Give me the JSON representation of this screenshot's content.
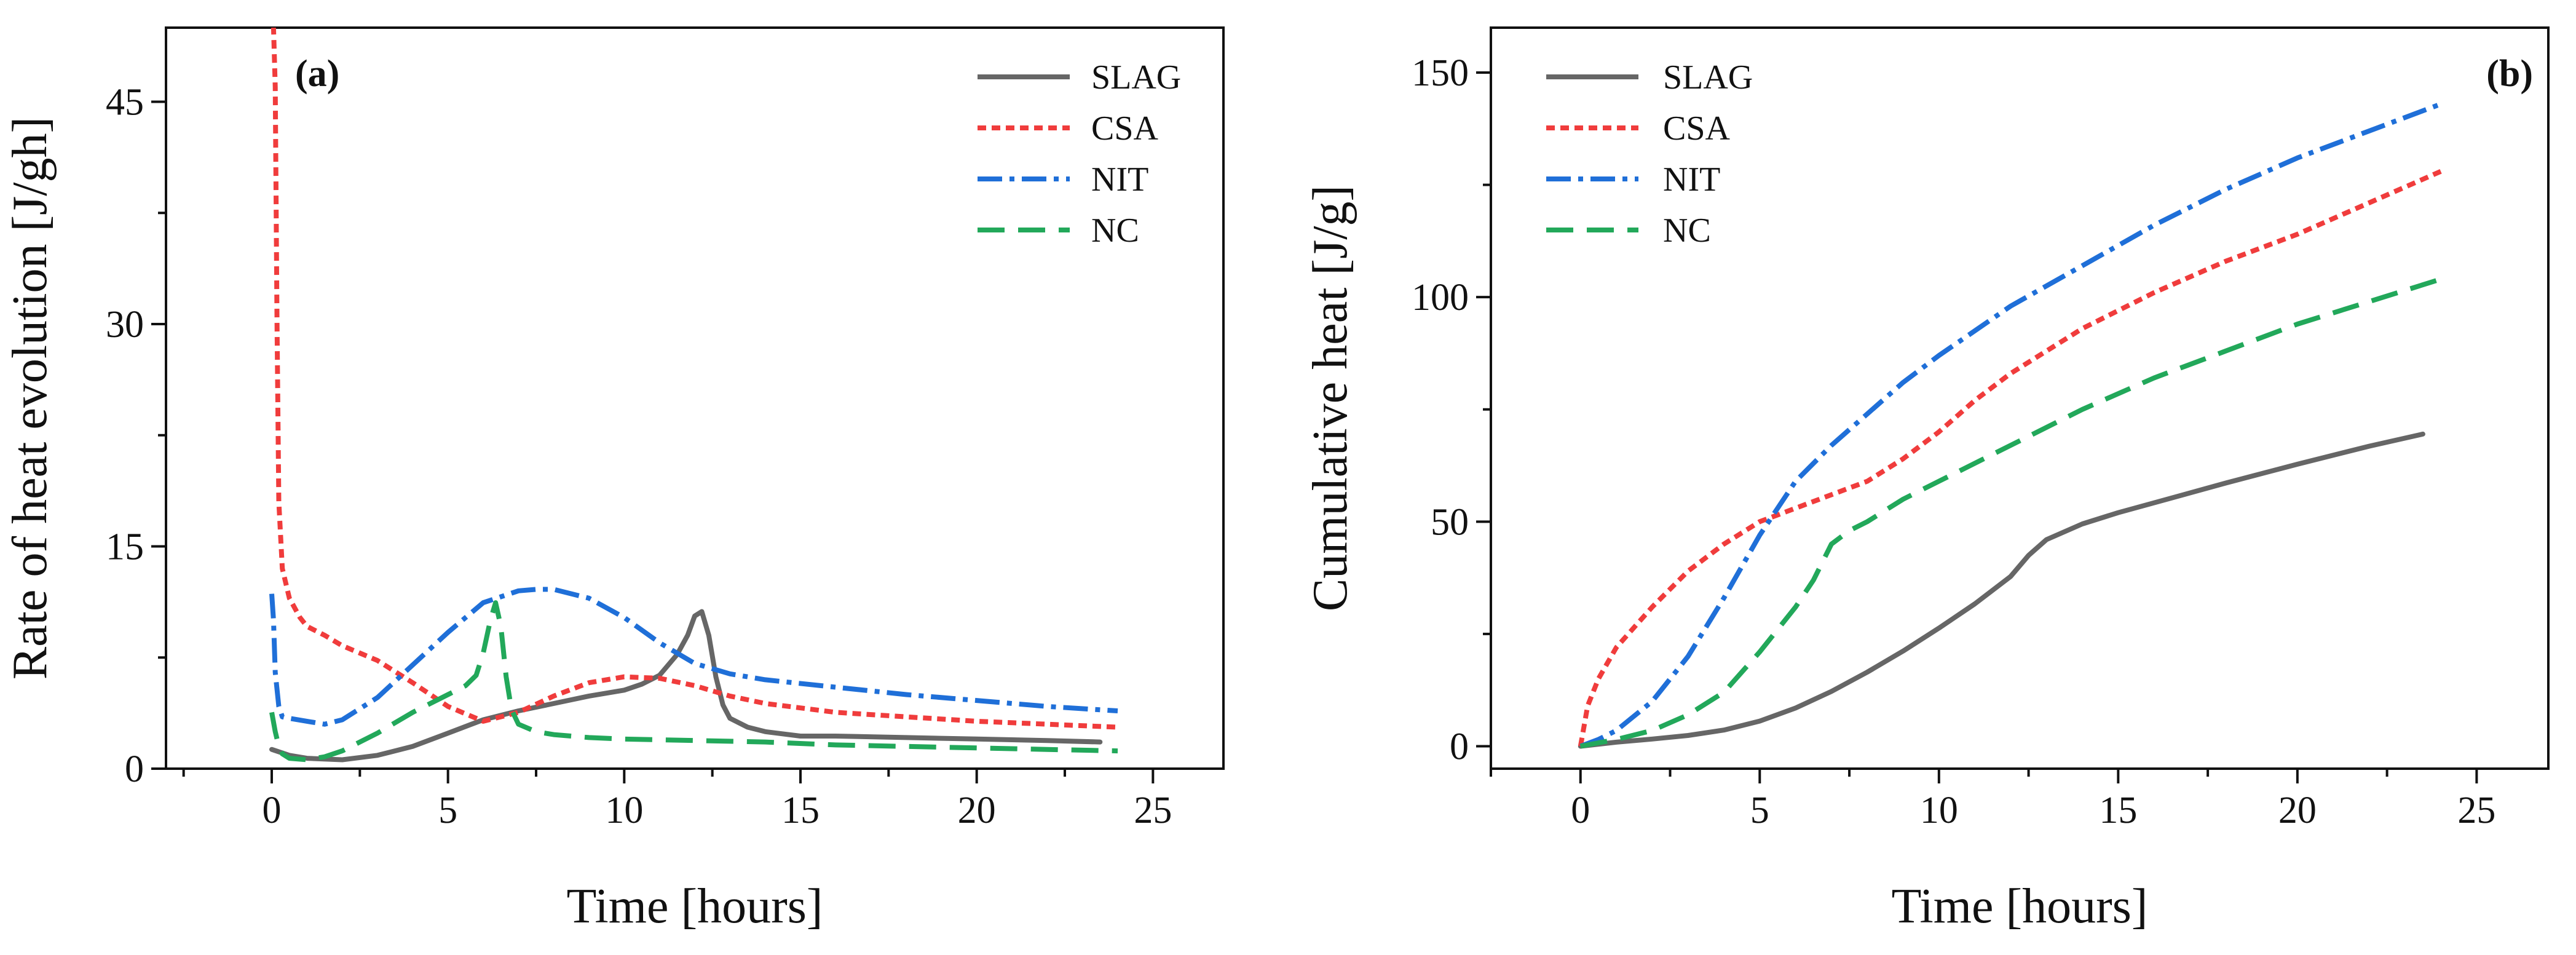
{
  "figure": {
    "description_free": true
  },
  "chart_data": [
    {
      "type": "line",
      "panel_label": "(a)",
      "xlabel": "Time [hours]",
      "ylabel": "Rate of heat evolution [J/gh]",
      "xlim": [
        -3,
        27
      ],
      "ylim": [
        0,
        50
      ],
      "xticks": [
        0,
        5,
        10,
        15,
        20,
        25
      ],
      "yticks": [
        0,
        15,
        30,
        45
      ],
      "grid": false,
      "legend_position": "top-right",
      "series": [
        {
          "name": "SLAG",
          "color": "#666666",
          "dash": "solid",
          "x": [
            0,
            0.5,
            1,
            2,
            3,
            4,
            5,
            6,
            7,
            8,
            9,
            10,
            10.5,
            11,
            11.5,
            11.8,
            12,
            12.2,
            12.4,
            12.6,
            12.8,
            13,
            13.5,
            14,
            15,
            16,
            18,
            20,
            22,
            23.5
          ],
          "y": [
            1.3,
            0.9,
            0.7,
            0.6,
            0.9,
            1.5,
            2.4,
            3.3,
            3.9,
            4.4,
            4.9,
            5.3,
            5.7,
            6.3,
            7.7,
            9.0,
            10.3,
            10.6,
            9.0,
            6.2,
            4.3,
            3.4,
            2.8,
            2.5,
            2.2,
            2.2,
            2.1,
            2.0,
            1.9,
            1.8
          ]
        },
        {
          "name": "CSA",
          "color": "#F03C3C",
          "dash": "dot",
          "x": [
            0,
            0.05,
            0.1,
            0.15,
            0.2,
            0.3,
            0.5,
            0.8,
            1,
            1.5,
            2,
            2.5,
            3,
            4,
            5,
            6,
            7,
            8,
            9,
            10,
            11,
            12,
            13,
            14,
            16,
            18,
            20,
            22,
            24
          ],
          "y": [
            50,
            50,
            46,
            30,
            18,
            13.5,
            11.5,
            10.2,
            9.6,
            9.0,
            8.3,
            7.8,
            7.3,
            5.8,
            4.2,
            3.2,
            3.8,
            4.9,
            5.8,
            6.2,
            6.1,
            5.6,
            4.9,
            4.4,
            3.8,
            3.5,
            3.2,
            3.0,
            2.8
          ]
        },
        {
          "name": "NIT",
          "color": "#1F6FD8",
          "dash": "dashdot",
          "x": [
            0,
            0.05,
            0.1,
            0.2,
            0.3,
            0.5,
            1,
            1.5,
            2,
            3,
            4,
            5,
            6,
            7,
            7.5,
            8,
            9,
            10,
            11,
            12,
            13,
            14,
            16,
            18,
            20,
            22,
            24
          ],
          "y": [
            11.8,
            10.0,
            6.5,
            4.2,
            3.5,
            3.4,
            3.2,
            3.0,
            3.3,
            4.8,
            7.0,
            9.2,
            11.2,
            12.0,
            12.1,
            12.1,
            11.5,
            10.2,
            8.5,
            7.1,
            6.4,
            6.0,
            5.5,
            5.0,
            4.6,
            4.2,
            3.9
          ]
        },
        {
          "name": "NC",
          "color": "#22A85A",
          "dash": "dash",
          "x": [
            0,
            0.1,
            0.2,
            0.3,
            0.5,
            1,
            1.5,
            2,
            3,
            4,
            5,
            5.5,
            5.8,
            6,
            6.2,
            6.35,
            6.5,
            6.65,
            6.8,
            7,
            7.5,
            8,
            9,
            10,
            12,
            14,
            16,
            18,
            20,
            22,
            24
          ],
          "y": [
            3.8,
            2.5,
            1.5,
            1.0,
            0.7,
            0.6,
            0.8,
            1.2,
            2.4,
            3.8,
            5.0,
            5.6,
            6.3,
            7.8,
            10.0,
            11.2,
            9.6,
            6.2,
            4.0,
            3.0,
            2.5,
            2.3,
            2.1,
            2.0,
            1.9,
            1.8,
            1.6,
            1.5,
            1.4,
            1.3,
            1.2
          ]
        }
      ]
    },
    {
      "type": "line",
      "panel_label": "(b)",
      "xlabel": "Time [hours]",
      "ylabel": "Cumulative heat [J/g]",
      "xlim": [
        -2.5,
        27
      ],
      "ylim": [
        -5,
        160
      ],
      "xticks": [
        0,
        5,
        10,
        15,
        20,
        25
      ],
      "yticks": [
        0,
        50,
        100,
        150
      ],
      "grid": false,
      "legend_position": "top-left",
      "series": [
        {
          "name": "SLAG",
          "color": "#666666",
          "dash": "solid",
          "x": [
            0,
            1,
            2,
            3,
            4,
            5,
            6,
            7,
            8,
            9,
            10,
            11,
            12,
            12.5,
            13,
            14,
            15,
            16,
            18,
            20,
            22,
            23.5
          ],
          "y": [
            0,
            0.9,
            1.6,
            2.4,
            3.6,
            5.6,
            8.5,
            12.2,
            16.5,
            21.2,
            26.3,
            31.7,
            37.8,
            42.5,
            46.0,
            49.5,
            52.0,
            54.2,
            58.6,
            62.8,
            66.8,
            69.5
          ]
        },
        {
          "name": "CSA",
          "color": "#F03C3C",
          "dash": "dot",
          "x": [
            0,
            0.2,
            0.5,
            1,
            2,
            3,
            4,
            5,
            6,
            7,
            8,
            9,
            10,
            11,
            12,
            13,
            14,
            16,
            18,
            20,
            22,
            24
          ],
          "y": [
            0,
            9,
            15,
            22,
            31,
            39,
            45,
            50,
            53,
            56,
            59,
            64,
            70,
            77,
            83,
            88,
            93,
            101,
            108,
            114,
            121,
            128
          ]
        },
        {
          "name": "NIT",
          "color": "#1F6FD8",
          "dash": "dashdot",
          "x": [
            0,
            0.5,
            1,
            2,
            3,
            4,
            5,
            6,
            7,
            8,
            9,
            10,
            12,
            14,
            16,
            18,
            20,
            22,
            24
          ],
          "y": [
            0,
            1.5,
            3.5,
            10,
            20,
            33,
            47,
            59,
            67,
            74,
            81,
            87,
            98,
            107,
            116,
            124,
            131,
            137,
            143
          ]
        },
        {
          "name": "NC",
          "color": "#22A85A",
          "dash": "dash",
          "x": [
            0,
            1,
            2,
            3,
            4,
            5,
            6,
            6.5,
            7,
            7.5,
            8,
            9,
            10,
            12,
            14,
            16,
            18,
            20,
            22,
            24
          ],
          "y": [
            0,
            1.5,
            3.5,
            7,
            12,
            21,
            31,
            37,
            45,
            48,
            50,
            55,
            59,
            67,
            75,
            82,
            88,
            94,
            99,
            104
          ]
        }
      ]
    }
  ]
}
